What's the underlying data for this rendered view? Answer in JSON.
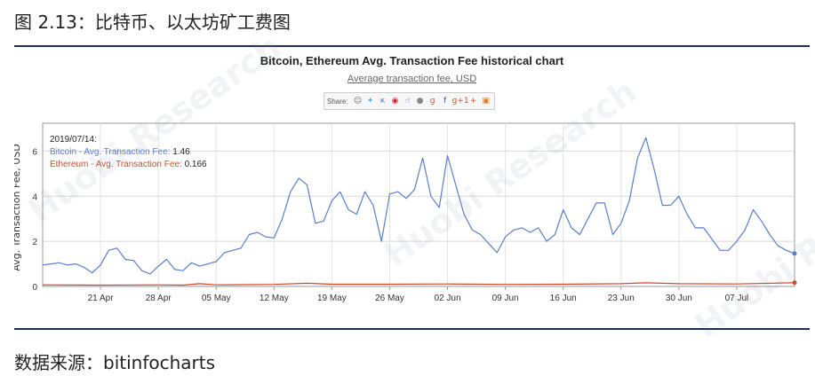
{
  "figure": {
    "caption": "图 2.13：比特币、以太坊矿工费图",
    "source": "数据来源：bitinfocharts",
    "watermark": "Huobi Research"
  },
  "share": {
    "label": "Share:",
    "buttons": [
      {
        "icon": "reddit-icon",
        "glyph": "☺",
        "color": "#666666"
      },
      {
        "icon": "twitter-icon",
        "glyph": "✦",
        "color": "#55acee"
      },
      {
        "icon": "vk-icon",
        "glyph": "к",
        "color": "#4a76a8"
      },
      {
        "icon": "weibo-icon",
        "glyph": "◉",
        "color": "#e6162d"
      },
      {
        "icon": "thumb-icon",
        "glyph": "☝",
        "color": "#3b5998"
      },
      {
        "icon": "circle-icon",
        "glyph": "●",
        "color": "#888888"
      },
      {
        "icon": "googleplus-icon",
        "glyph": "g",
        "color": "#dd4b39"
      },
      {
        "icon": "facebook-icon",
        "glyph": "f",
        "color": "#3b5998"
      },
      {
        "icon": "gplus1-icon",
        "glyph": "g+1",
        "color": "#dd4b39"
      },
      {
        "icon": "plus-icon",
        "glyph": "+",
        "color": "#dd4b39"
      },
      {
        "icon": "box-icon",
        "glyph": "▣",
        "color": "#e67e22"
      }
    ]
  },
  "chart_data": {
    "type": "line",
    "title": "Bitcoin, Ethereum Avg. Transaction Fee historical chart",
    "subtitle": "Average transaction fee, USD",
    "ylabel": "Avg. Transaction Fee, USD",
    "ylim": [
      0,
      7
    ],
    "yticks": [
      0,
      2,
      4,
      6
    ],
    "grid": true,
    "x_start": "2019-04-14",
    "x_end": "2019-07-14",
    "xticks": [
      {
        "date": "2019-04-21",
        "label": "21 Apr"
      },
      {
        "date": "2019-04-28",
        "label": "28 Apr"
      },
      {
        "date": "2019-05-05",
        "label": "05 May"
      },
      {
        "date": "2019-05-12",
        "label": "12 May"
      },
      {
        "date": "2019-05-19",
        "label": "19 May"
      },
      {
        "date": "2019-05-26",
        "label": "26 May"
      },
      {
        "date": "2019-06-02",
        "label": "02 Jun"
      },
      {
        "date": "2019-06-09",
        "label": "09 Jun"
      },
      {
        "date": "2019-06-16",
        "label": "16 Jun"
      },
      {
        "date": "2019-06-23",
        "label": "23 Jun"
      },
      {
        "date": "2019-06-30",
        "label": "30 Jun"
      },
      {
        "date": "2019-07-07",
        "label": "07 Jul"
      }
    ],
    "tooltip": {
      "date": "2019/07/14:",
      "entries": [
        {
          "label": "Bitcoin - Avg. Transaction Fee:",
          "value": "1.46",
          "color": "#5a7fc8"
        },
        {
          "label": "Ethereum - Avg. Transaction Fee:",
          "value": "0.166",
          "color": "#d04a2a"
        }
      ]
    },
    "series": [
      {
        "name": "Bitcoin",
        "color": "#5a7fc8",
        "x": [
          "2019-04-14",
          "2019-04-15",
          "2019-04-16",
          "2019-04-17",
          "2019-04-18",
          "2019-04-19",
          "2019-04-20",
          "2019-04-21",
          "2019-04-22",
          "2019-04-23",
          "2019-04-24",
          "2019-04-25",
          "2019-04-26",
          "2019-04-27",
          "2019-04-28",
          "2019-04-29",
          "2019-04-30",
          "2019-05-01",
          "2019-05-02",
          "2019-05-03",
          "2019-05-04",
          "2019-05-05",
          "2019-05-06",
          "2019-05-07",
          "2019-05-08",
          "2019-05-09",
          "2019-05-10",
          "2019-05-11",
          "2019-05-12",
          "2019-05-13",
          "2019-05-14",
          "2019-05-15",
          "2019-05-16",
          "2019-05-17",
          "2019-05-18",
          "2019-05-19",
          "2019-05-20",
          "2019-05-21",
          "2019-05-22",
          "2019-05-23",
          "2019-05-24",
          "2019-05-25",
          "2019-05-26",
          "2019-05-27",
          "2019-05-28",
          "2019-05-29",
          "2019-05-30",
          "2019-05-31",
          "2019-06-01",
          "2019-06-02",
          "2019-06-03",
          "2019-06-04",
          "2019-06-05",
          "2019-06-06",
          "2019-06-07",
          "2019-06-08",
          "2019-06-09",
          "2019-06-10",
          "2019-06-11",
          "2019-06-12",
          "2019-06-13",
          "2019-06-14",
          "2019-06-15",
          "2019-06-16",
          "2019-06-17",
          "2019-06-18",
          "2019-06-19",
          "2019-06-20",
          "2019-06-21",
          "2019-06-22",
          "2019-06-23",
          "2019-06-24",
          "2019-06-25",
          "2019-06-26",
          "2019-06-27",
          "2019-06-28",
          "2019-06-29",
          "2019-06-30",
          "2019-07-01",
          "2019-07-02",
          "2019-07-03",
          "2019-07-04",
          "2019-07-05",
          "2019-07-06",
          "2019-07-07",
          "2019-07-08",
          "2019-07-09",
          "2019-07-10",
          "2019-07-11",
          "2019-07-12",
          "2019-07-13",
          "2019-07-14"
        ],
        "values": [
          0.95,
          1.0,
          1.05,
          0.95,
          1.0,
          0.85,
          0.6,
          0.95,
          1.6,
          1.7,
          1.2,
          1.15,
          0.7,
          0.55,
          0.9,
          1.2,
          0.75,
          0.7,
          1.05,
          0.9,
          1.0,
          1.1,
          1.5,
          1.6,
          1.7,
          2.3,
          2.4,
          2.2,
          2.15,
          3.0,
          4.2,
          4.8,
          4.5,
          2.8,
          2.9,
          3.8,
          4.2,
          3.4,
          3.2,
          4.2,
          3.6,
          2.0,
          4.1,
          4.2,
          3.9,
          4.3,
          5.7,
          4.0,
          3.5,
          5.8,
          4.5,
          3.2,
          2.5,
          2.3,
          1.9,
          1.5,
          2.2,
          2.5,
          2.6,
          2.4,
          2.6,
          2.0,
          2.3,
          3.4,
          2.6,
          2.3,
          3.0,
          3.7,
          3.7,
          2.3,
          2.8,
          3.8,
          5.7,
          6.6,
          5.2,
          3.6,
          3.6,
          4.0,
          3.2,
          2.6,
          2.6,
          2.1,
          1.6,
          1.6,
          2.0,
          2.5,
          3.4,
          2.9,
          2.3,
          1.8,
          1.6,
          1.46
        ]
      },
      {
        "name": "Ethereum",
        "color": "#d04a2a",
        "x": [
          "2019-04-14",
          "2019-04-21",
          "2019-04-28",
          "2019-05-01",
          "2019-05-03",
          "2019-05-05",
          "2019-05-12",
          "2019-05-16",
          "2019-05-19",
          "2019-05-26",
          "2019-06-02",
          "2019-06-09",
          "2019-06-16",
          "2019-06-23",
          "2019-06-26",
          "2019-06-30",
          "2019-07-07",
          "2019-07-14"
        ],
        "values": [
          0.07,
          0.06,
          0.07,
          0.06,
          0.12,
          0.07,
          0.09,
          0.14,
          0.1,
          0.1,
          0.11,
          0.09,
          0.1,
          0.12,
          0.16,
          0.12,
          0.11,
          0.166
        ]
      }
    ]
  }
}
